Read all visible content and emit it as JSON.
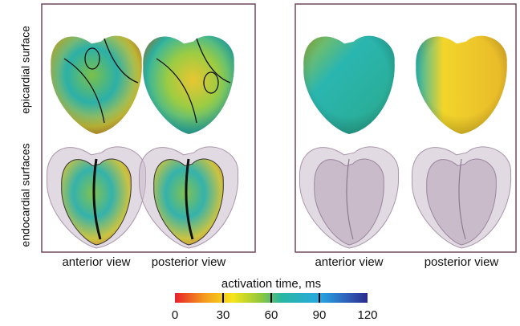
{
  "row_labels": [
    "epicardial surface",
    "endocardial surfaces"
  ],
  "panels": [
    {
      "column_labels": [
        "anterior view",
        "posterior view"
      ]
    },
    {
      "column_labels": [
        "anterior view",
        "posterior view"
      ]
    }
  ],
  "colorbar": {
    "label": "activation time, ms",
    "range": [
      0,
      120
    ],
    "ticks": [
      0,
      30,
      60,
      90,
      120
    ]
  }
}
